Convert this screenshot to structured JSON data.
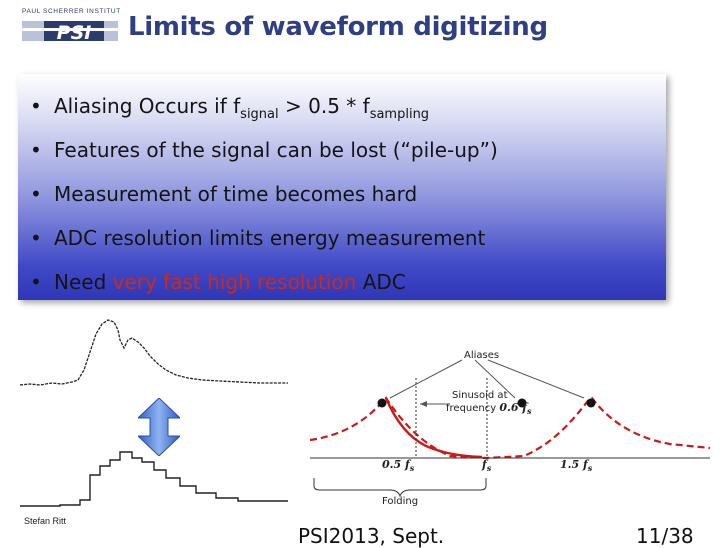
{
  "logo": {
    "top_text": "PAUL SCHERRER INSTITUT",
    "mark_text": "PSI"
  },
  "title": "Limits of waveform digitizing",
  "bullets": [
    {
      "parts": [
        {
          "text": "Aliasing Occurs if f"
        },
        {
          "text": "signal",
          "style": "sub"
        },
        {
          "text": " > 0.5 * f"
        },
        {
          "text": "sampling",
          "style": "sub"
        }
      ]
    },
    {
      "parts": [
        {
          "text": "Features of the signal can be lost (“pile-up”)"
        }
      ]
    },
    {
      "parts": [
        {
          "text": "Measurement of time becomes hard"
        }
      ]
    },
    {
      "parts": [
        {
          "text": "ADC resolution limits energy measurement"
        }
      ]
    },
    {
      "parts": [
        {
          "text": "Need "
        },
        {
          "text": "very fast high resolution",
          "style": "red"
        },
        {
          "text": " ADC"
        }
      ]
    }
  ],
  "bullet_glyph": "•",
  "alias_diagram": {
    "aliases_label": "Aliases",
    "sinusoid_label_1": "Sinusoid at",
    "sinusoid_label_2": "frequency",
    "sinusoid_freq": "0.6 f",
    "sinusoid_freq_sub": "s",
    "axis_05": "0.5 f",
    "axis_1": "f",
    "axis_15": "1.5 f",
    "axis_sub": "s",
    "folding_label": "Folding"
  },
  "footer": {
    "author": "Stefan Ritt",
    "event": "PSI2013, Sept.",
    "page": "11/38"
  },
  "colors": {
    "title": "#2f3f86",
    "accent_red": "#cc2a1a",
    "panel_bottom": "#2f37b8",
    "curve_red": "#cc1a1a",
    "arrow_blue": "#3f6fd0"
  }
}
